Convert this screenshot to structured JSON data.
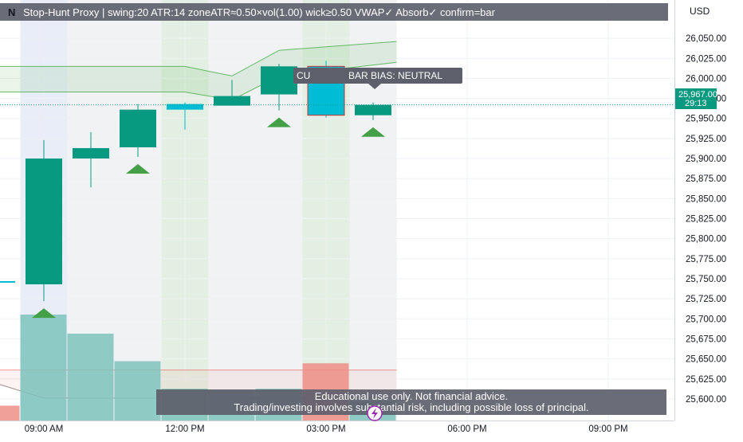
{
  "symbol_label": "N",
  "indicator_label": "Stop-Hunt Proxy | swing:20 ATR:14 zoneATR≈0.50×vol(1.00) wick≥0.50 VWAP✓ Absorb✓ confirm=bar",
  "currency": "USD",
  "bias_label": "BAR BIAS: NEUTRAL",
  "bias_label_prefix": "CU",
  "last_price": "25,967.00",
  "countdown": "29:13",
  "disclaimer": {
    "line1": "Educational use only. Not financial advice.",
    "line2": "Trading/investing involves substantial risk, including possible loss of principal."
  },
  "colors": {
    "up": "#089981",
    "down_cyan": "#00bcd4",
    "arrow": "#43a047",
    "vol_teal": "#7ec3bc",
    "vol_red": "#ef8e87",
    "band": "#4caf50",
    "price_tag": "#089981",
    "session_green": "#e3efe2",
    "session_blue": "#e8edf8",
    "session_grey": "#f1f2f4"
  },
  "chart_data": {
    "type": "candlestick",
    "y_axis": {
      "ticks": [
        "26,050.00",
        "26,025.00",
        "26,000.00",
        "25,975.00",
        "25,950.00",
        "25,925.00",
        "25,900.00",
        "25,875.00",
        "25,850.00",
        "25,825.00",
        "25,800.00",
        "25,775.00",
        "25,750.00",
        "25,725.00",
        "25,700.00",
        "25,675.00",
        "25,650.00",
        "25,625.00",
        "25,600.00"
      ],
      "range": [
        25585,
        26068
      ]
    },
    "x_axis": {
      "ticks": [
        "09:00 AM",
        "12:00 PM",
        "03:00 PM",
        "06:00 PM",
        "09:00 PM"
      ]
    },
    "candles": [
      {
        "time": "08:00",
        "open": 25747,
        "high": 25749,
        "low": 25743,
        "close": 25745,
        "color": "cyan"
      },
      {
        "time": "09:00",
        "open": 25743,
        "high": 25923,
        "low": 25722,
        "close": 25900,
        "color": "up"
      },
      {
        "time": "10:00",
        "open": 25900,
        "high": 25933,
        "low": 25864,
        "close": 25913,
        "color": "up"
      },
      {
        "time": "11:00",
        "open": 25914,
        "high": 25968,
        "low": 25902,
        "close": 25961,
        "color": "up"
      },
      {
        "time": "12:00",
        "open": 25961,
        "high": 25970,
        "low": 25936,
        "close": 25968,
        "color": "cyan"
      },
      {
        "time": "13:00",
        "open": 25966,
        "high": 25998,
        "low": 25966,
        "close": 25978,
        "color": "up"
      },
      {
        "time": "14:00",
        "open": 25980,
        "high": 26018,
        "low": 25960,
        "close": 26015,
        "color": "up"
      },
      {
        "time": "15:00",
        "open": 26015,
        "high": 26022,
        "low": 25951,
        "close": 25954,
        "color": "cyan"
      },
      {
        "time": "16:00",
        "open": 25954,
        "high": 25970,
        "low": 25948,
        "close": 25967,
        "color": "up"
      }
    ],
    "buy_arrow_times": [
      "09:00",
      "11:00",
      "14:00",
      "16:00"
    ],
    "volume": [
      {
        "time": "08:00",
        "level": 0.14,
        "color": "red"
      },
      {
        "time": "09:00",
        "level": 1.0,
        "color": "teal"
      },
      {
        "time": "10:00",
        "level": 0.82,
        "color": "teal"
      },
      {
        "time": "11:00",
        "level": 0.56,
        "color": "teal"
      },
      {
        "time": "12:00",
        "level": 0.3,
        "color": "teal"
      },
      {
        "time": "13:00",
        "level": 0.29,
        "color": "teal"
      },
      {
        "time": "14:00",
        "level": 0.3,
        "color": "teal"
      },
      {
        "time": "15:00",
        "level": 0.54,
        "color": "red"
      },
      {
        "time": "16:00",
        "level": 0.18,
        "color": "teal"
      }
    ],
    "upper_band": [
      {
        "time": "07:00",
        "upper": 26015,
        "lower": 25983
      },
      {
        "time": "12:00",
        "upper": 26015,
        "lower": 25983
      },
      {
        "time": "13:00",
        "upper": 26003,
        "lower": 25973
      },
      {
        "time": "14:00",
        "upper": 26035,
        "lower": 26003
      },
      {
        "time": "16:30",
        "upper": 26046,
        "lower": 26020
      }
    ],
    "lower_band_top": 25636,
    "lower_band_line": [
      {
        "time": "07:00",
        "value": 25618
      },
      {
        "time": "09:00",
        "value": 25601
      },
      {
        "time": "13:00",
        "value": 25601
      },
      {
        "time": "16:30",
        "value": 25602
      }
    ],
    "sessions": [
      {
        "start": "09:00",
        "end": "10:00",
        "kind": "blue"
      },
      {
        "start": "10:00",
        "end": "12:00",
        "kind": "grey"
      },
      {
        "start": "12:00",
        "end": "13:00",
        "kind": "green"
      },
      {
        "start": "13:00",
        "end": "15:00",
        "kind": "grey"
      },
      {
        "start": "15:00",
        "end": "16:00",
        "kind": "green"
      },
      {
        "start": "16:00",
        "end": "17:00",
        "kind": "grey"
      }
    ]
  }
}
